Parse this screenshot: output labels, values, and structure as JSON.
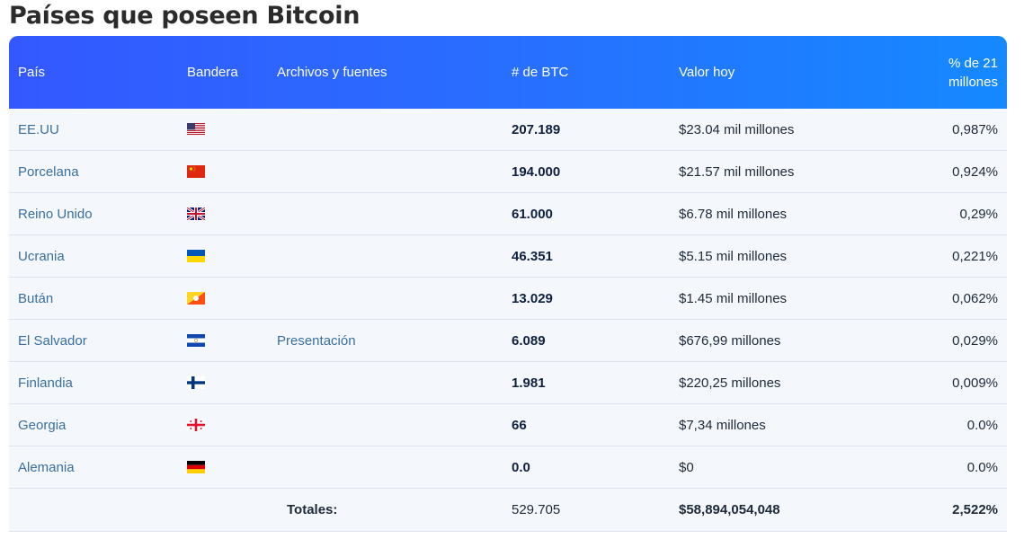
{
  "page": {
    "title": "Países que poseen Bitcoin"
  },
  "table": {
    "headers": {
      "country": "País",
      "flag": "Bandera",
      "sources": "Archivos y fuentes",
      "btc": "# de BTC",
      "value": "Valor hoy",
      "pct_line1": "% de 21",
      "pct_line2": "millones"
    },
    "rows": [
      {
        "country": "EE.UU",
        "flag": "us-flag",
        "source": "",
        "btc": "207.189",
        "value": "$23.04 mil millones",
        "pct": "0,987%"
      },
      {
        "country": "Porcelana",
        "flag": "china-flag",
        "source": "",
        "btc": "194.000",
        "value": "$21.57 mil millones",
        "pct": "0,924%"
      },
      {
        "country": "Reino Unido",
        "flag": "uk-flag",
        "source": "",
        "btc": "61.000",
        "value": "$6.78 mil millones",
        "pct": "0,29%"
      },
      {
        "country": "Ucrania",
        "flag": "ukraine-flag",
        "source": "",
        "btc": "46.351",
        "value": "$5.15 mil millones",
        "pct": "0,221%"
      },
      {
        "country": "Bután",
        "flag": "bhutan-flag",
        "source": "",
        "btc": "13.029",
        "value": "$1.45 mil millones",
        "pct": "0,062%"
      },
      {
        "country": "El Salvador",
        "flag": "el-salvador-flag",
        "source": "Presentación",
        "btc": "6.089",
        "value": "$676,99 millones",
        "pct": "0,029%"
      },
      {
        "country": "Finlandia",
        "flag": "finland-flag",
        "source": "",
        "btc": "1.981",
        "value": "$220,25 millones",
        "pct": "0,009%"
      },
      {
        "country": "Georgia",
        "flag": "georgia-flag",
        "source": "",
        "btc": "66",
        "value": "$7,34 millones",
        "pct": "0.0%"
      },
      {
        "country": "Alemania",
        "flag": "germany-flag",
        "source": "",
        "btc": "0.0",
        "value": "$0",
        "pct": "0.0%"
      }
    ],
    "totals": {
      "label": "Totales:",
      "btc": "529.705",
      "value": "$58,894,054,048",
      "pct": "2,522%"
    }
  },
  "colors": {
    "header_start": "#3358ff",
    "header_end": "#1589ff",
    "link": "#3a6fa0",
    "row_bg": "#f4f7fb"
  }
}
